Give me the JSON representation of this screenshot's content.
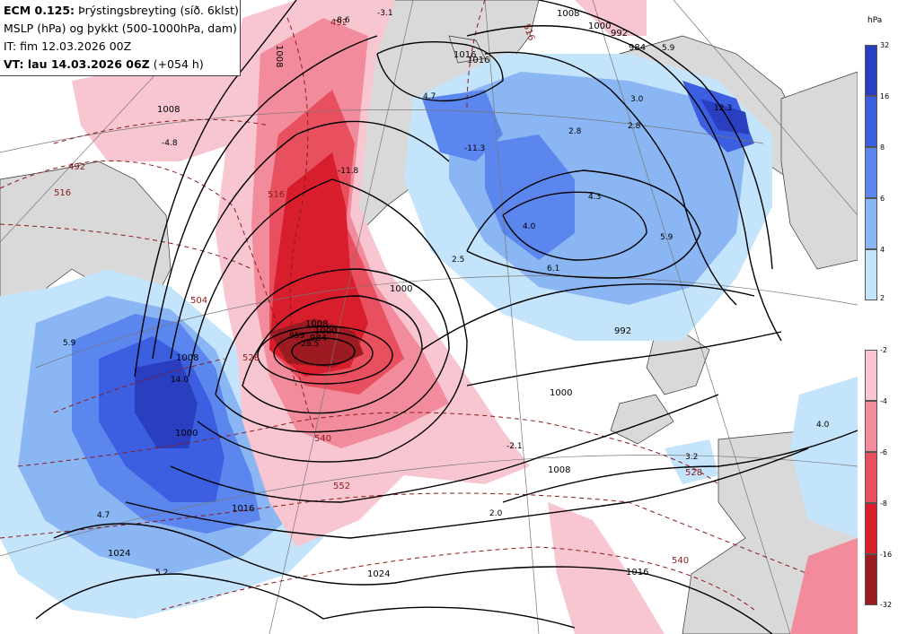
{
  "header": {
    "line1_bold": "ECM 0.125:",
    "line1_rest": " Þrýstingsbreyting (síð. 6klst)",
    "line2": "MSLP (hPa) og þykkt (500-1000hPa, dam)",
    "line3": "IT: fim 12.03.2026 00Z",
    "line4_bold": "VT: lau 14.03.2026 06Z",
    "line4_rest": " (+054 h)"
  },
  "legend": {
    "title": "hPa",
    "upper_ticks": [
      "32",
      "16",
      "8",
      "6",
      "4",
      "2"
    ],
    "lower_ticks": [
      "-2",
      "-4",
      "-6",
      "-8",
      "-16",
      "-32"
    ],
    "colors": {
      "blue": [
        "#2a3fc0",
        "#3b5fe0",
        "#5b86ee",
        "#8ab6f4",
        "#c4e4fb"
      ],
      "red": [
        "#f8c6d0",
        "#f28c9c",
        "#e8505f",
        "#d81e2c",
        "#9c1a22"
      ]
    }
  },
  "map_labels": {
    "isobars": [
      "1008",
      "1016",
      "1008",
      "1000",
      "992",
      "984",
      "1008",
      "1000",
      "992",
      "1000",
      "1008",
      "1016",
      "1024",
      "1016",
      "1000",
      "1008",
      "984",
      "1000",
      "1008",
      "1016",
      "1024"
    ],
    "thickness": [
      "516",
      "492",
      "516",
      "492",
      "504",
      "528",
      "540",
      "552",
      "528",
      "540",
      "516"
    ],
    "tendency_values": [
      "-3.1",
      "-4.8",
      "-8.6",
      "-11.8",
      "-28.5",
      "4.7",
      "4.0",
      "4.3",
      "5.9",
      "3.0",
      "2.8",
      "2.8",
      "12.3",
      "2.5",
      "6.1",
      "5.9",
      "14.0",
      "5.9",
      "4.7",
      "5.2",
      "-2.1",
      "2.0",
      "-11.3",
      "3.2",
      "4.0"
    ],
    "low_center": "959"
  }
}
